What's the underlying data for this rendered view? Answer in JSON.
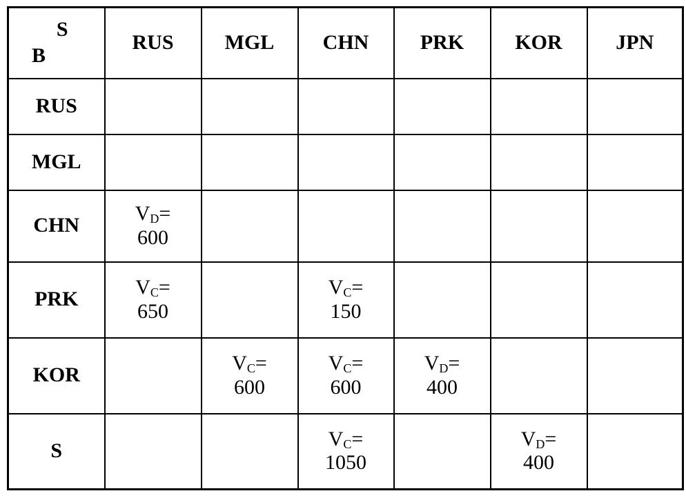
{
  "corner": {
    "seller_label": "S",
    "buyer_label": "B"
  },
  "columns": [
    "RUS",
    "MGL",
    "CHN",
    "PRK",
    "KOR",
    "JPN"
  ],
  "rows": [
    {
      "label": "RUS",
      "cells": [
        null,
        null,
        null,
        null,
        null,
        null
      ]
    },
    {
      "label": "MGL",
      "cells": [
        null,
        null,
        null,
        null,
        null,
        null
      ]
    },
    {
      "label": "CHN",
      "cells": [
        {
          "symbol": "V",
          "sub": "D",
          "eq": "=",
          "value": "600"
        },
        null,
        null,
        null,
        null,
        null
      ]
    },
    {
      "label": "PRK",
      "cells": [
        {
          "symbol": "V",
          "sub": "C",
          "eq": "=",
          "value": "650"
        },
        null,
        {
          "symbol": "V",
          "sub": "C",
          "eq": "=",
          "value": "150"
        },
        null,
        null,
        null
      ]
    },
    {
      "label": "KOR",
      "cells": [
        null,
        {
          "symbol": "V",
          "sub": "C",
          "eq": "=",
          "value": "600"
        },
        {
          "symbol": "V",
          "sub": "C",
          "eq": "=",
          "value": "600"
        },
        {
          "symbol": "V",
          "sub": "D",
          "eq": "=",
          "value": "400"
        },
        null,
        null
      ]
    },
    {
      "label": "S",
      "cells": [
        null,
        null,
        {
          "symbol": "V",
          "sub": "C",
          "eq": "=",
          "value": "1050"
        },
        null,
        {
          "symbol": "V",
          "sub": "D",
          "eq": "=",
          "value": "400"
        },
        null
      ]
    }
  ]
}
